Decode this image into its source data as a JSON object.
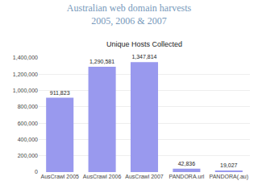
{
  "chart_data": {
    "type": "bar",
    "title": "Australian web domain harvests\n2005, 2006 & 2007",
    "subtitle": "Unique Hosts Collected",
    "categories": [
      "AusCrawl 2005",
      "AusCrawl 2006",
      "AusCrawl 2007",
      "PANDORA.url",
      "PANDORA(.au)"
    ],
    "values": [
      911823,
      1290581,
      1347814,
      42836,
      19027
    ],
    "value_labels": [
      "911,823",
      "1,290,581",
      "1,347,814",
      "42,836",
      "19,027"
    ],
    "data_labels": true,
    "color": "#9999ee",
    "ylim": [
      0,
      1400000
    ],
    "yticks": [
      0,
      {
        "value": 200000,
        "label": "200,000"
      },
      {
        "value": 400000,
        "label": "400,000"
      },
      {
        "value": 600000,
        "label": "600,000"
      },
      {
        "value": 800000,
        "label": "800,000"
      },
      {
        "value": 1000000,
        "label": "1,000,000"
      },
      {
        "value": 1200000,
        "label": "1,200,000"
      },
      {
        "value": 1400000,
        "label": "1,400,000"
      }
    ],
    "grid": true
  }
}
